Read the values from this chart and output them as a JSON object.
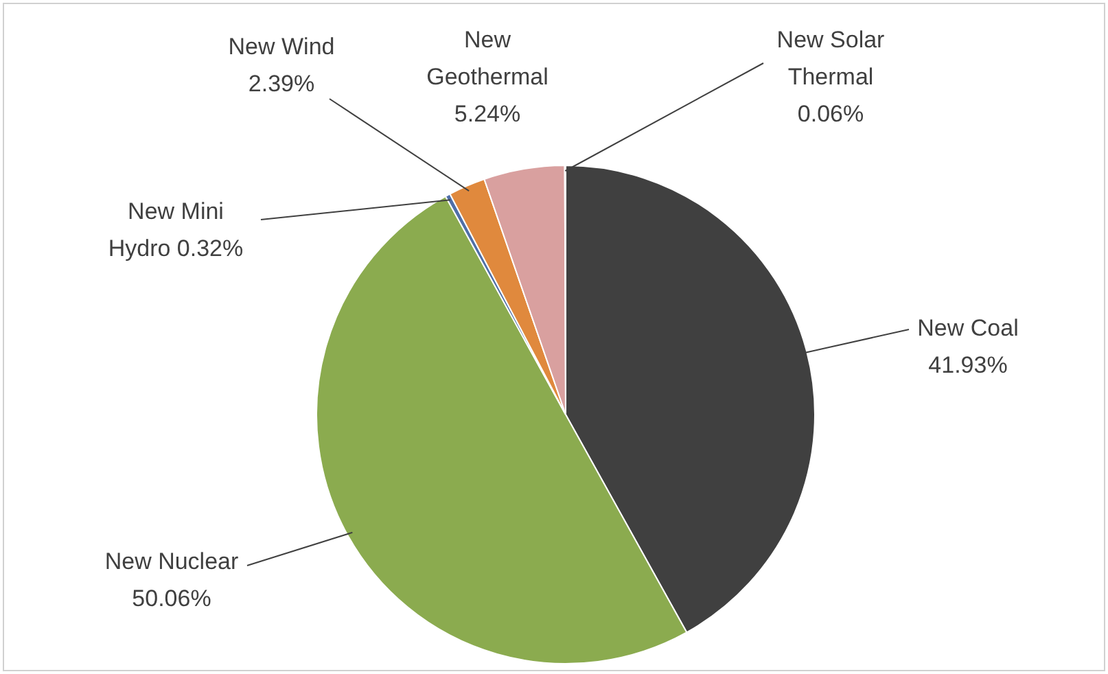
{
  "chart_data": {
    "type": "pie",
    "categories": [
      "New Coal",
      "New Nuclear",
      "New Mini Hydro",
      "New Wind",
      "New Geothermal",
      "New Solar Thermal"
    ],
    "values": [
      41.93,
      50.06,
      0.32,
      2.39,
      5.24,
      0.06
    ],
    "value_labels": [
      "41.93%",
      "50.06%",
      "0.32%",
      "2.39%",
      "5.24%",
      "0.06%"
    ],
    "colors": [
      "#404040",
      "#8bab4f",
      "#4f6fa8",
      "#e0893d",
      "#d9a09f",
      "#8064a2"
    ],
    "legend": false
  }
}
